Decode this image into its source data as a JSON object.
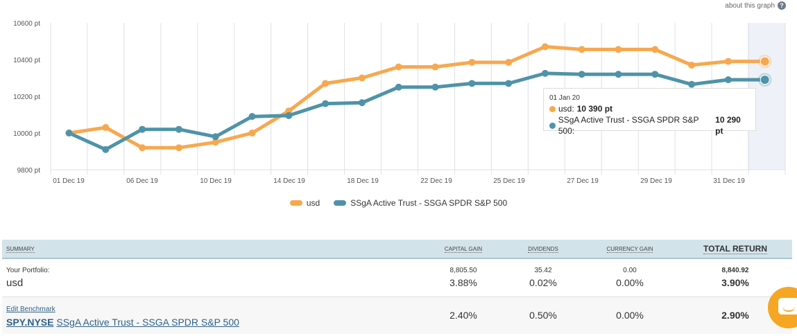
{
  "header": {
    "about_label": "about this graph",
    "help_icon": "question-circle-icon",
    "help_glyph": "?"
  },
  "colors": {
    "usd": "#f7a84f",
    "benchmark": "#4f93a8",
    "grid": "#dde0e6",
    "highlight_band": "#eef2f8"
  },
  "chart_data": {
    "type": "line",
    "title": "",
    "xlabel": "",
    "ylabel": "",
    "ylim": [
      9800,
      10600
    ],
    "y_ticks": [
      {
        "value": 10600,
        "label": "10600 pt"
      },
      {
        "value": 10400,
        "label": "10400 pt"
      },
      {
        "value": 10200,
        "label": "10200 pt"
      },
      {
        "value": 10000,
        "label": "10000 pt"
      },
      {
        "value": 9800,
        "label": "9800 pt"
      }
    ],
    "x_tick_labels": [
      "01 Dec 19",
      "06 Dec 19",
      "10 Dec 19",
      "14 Dec 19",
      "18 Dec 19",
      "22 Dec 19",
      "25 Dec 19",
      "27 Dec 19",
      "29 Dec 19",
      "31 Dec 19"
    ],
    "points_count": 20,
    "grid": true,
    "legend_position": "bottom",
    "series": [
      {
        "name": "usd",
        "color": "#f7a84f",
        "values": [
          10000,
          10030,
          9920,
          9920,
          9950,
          10000,
          10120,
          10270,
          10300,
          10360,
          10360,
          10385,
          10385,
          10470,
          10455,
          10455,
          10455,
          10370,
          10390,
          10390
        ]
      },
      {
        "name": "SSgA Active Trust - SSGA SPDR S&P 500",
        "color": "#4f93a8",
        "values": [
          10000,
          9910,
          10020,
          10020,
          9980,
          10090,
          10095,
          10160,
          10165,
          10250,
          10250,
          10270,
          10270,
          10325,
          10320,
          10320,
          10320,
          10265,
          10290,
          10290
        ]
      }
    ],
    "tooltip": {
      "date": "01 Jan 20",
      "rows": [
        {
          "label": "usd: ",
          "value": "10 390 pt"
        },
        {
          "label": "SSgA Active Trust - SSGA SPDR S&P 500: ",
          "value": "10 290 pt"
        }
      ]
    }
  },
  "legend": [
    {
      "label": "usd"
    },
    {
      "label": "SSgA Active Trust - SSGA SPDR S&P 500"
    }
  ],
  "summary": {
    "headers": {
      "summary": "SUMMARY",
      "capital_gain": "CAPITAL GAIN",
      "dividends": "DIVIDENDS",
      "currency_gain": "CURRENCY GAIN",
      "total_return": "TOTAL RETURN"
    },
    "portfolio": {
      "label": "Your Portfolio:",
      "name": "usd",
      "capital_gain_amount": "8,805.50",
      "capital_gain_pct": "3.88%",
      "dividends_amount": "35.42",
      "dividends_pct": "0.02%",
      "currency_gain_amount": "0.00",
      "currency_gain_pct": "0.00%",
      "total_amount": "8,840.92",
      "total_pct": "3.90%"
    },
    "benchmark": {
      "edit_label": "Edit Benchmark",
      "ticker": "SPY.NYSE",
      "name": "SSgA Active Trust - SSGA SPDR S&P 500",
      "capital_gain_pct": "2.40%",
      "dividends_pct": "0.50%",
      "currency_gain_pct": "0.00%",
      "total_pct": "2.90%"
    }
  },
  "chat_widget": {
    "icon": "chat-bubble-icon"
  }
}
